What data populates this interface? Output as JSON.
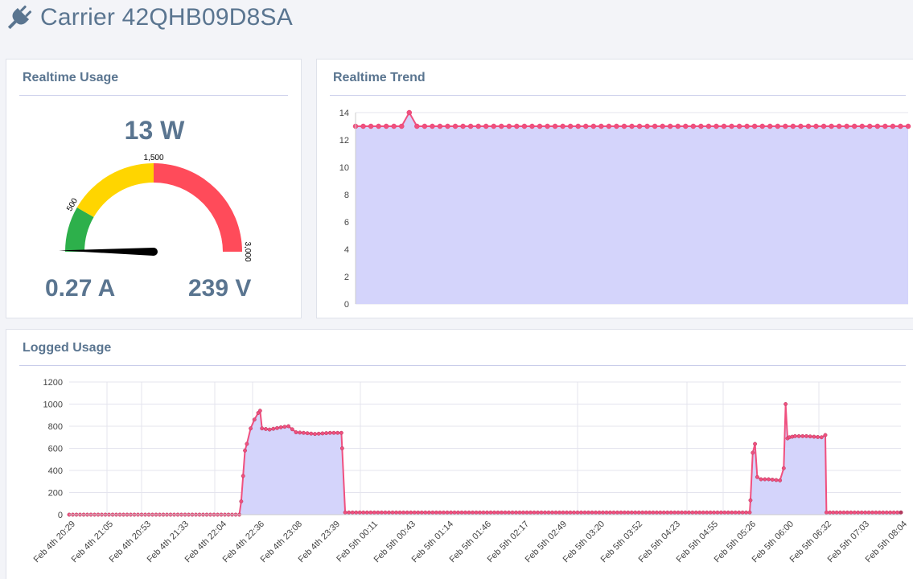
{
  "header": {
    "title": "Carrier 42QHB09D8SA",
    "icon": "plug-icon"
  },
  "realtime_usage": {
    "title": "Realtime Usage",
    "watts": "13 W",
    "amps": "0.27 A",
    "volts": "239 V",
    "gauge": {
      "min": 0,
      "max": 3000,
      "value": 13,
      "labels": [
        "500",
        "1,500",
        "3,000"
      ],
      "bands": [
        {
          "from": 0,
          "to": 500,
          "color": "#2db04b"
        },
        {
          "from": 500,
          "to": 1500,
          "color": "#ffd500"
        },
        {
          "from": 1500,
          "to": 3000,
          "color": "#ff4b5a"
        }
      ]
    }
  },
  "realtime_trend": {
    "title": "Realtime Trend"
  },
  "logged_usage": {
    "title": "Logged Usage"
  },
  "colors": {
    "line": "#f0507f",
    "fill": "#d4d4fb",
    "text": "#5a7590"
  },
  "chart_data": [
    {
      "type": "area",
      "title": "Realtime Trend",
      "ylim": [
        0,
        14
      ],
      "yticks": [
        0,
        2,
        4,
        6,
        8,
        10,
        12,
        14
      ],
      "grid": true,
      "series": [
        {
          "values": [
            13,
            13,
            13,
            13,
            13,
            13,
            13,
            14,
            13,
            13,
            13,
            13,
            13,
            13,
            13,
            13,
            13,
            13,
            13,
            13,
            13,
            13,
            13,
            13,
            13,
            13,
            13,
            13,
            13,
            13,
            13,
            13,
            13,
            13,
            13,
            13,
            13,
            13,
            13,
            13,
            13,
            13,
            13,
            13,
            13,
            13,
            13,
            13,
            13,
            13,
            13,
            13,
            13,
            13,
            13,
            13,
            13,
            13,
            13,
            13,
            13,
            13,
            13,
            13,
            13,
            13,
            13,
            13,
            13,
            13,
            13,
            13,
            13
          ]
        }
      ]
    },
    {
      "type": "area",
      "title": "Logged Usage",
      "ylim": [
        0,
        1200
      ],
      "yticks": [
        0,
        200,
        400,
        600,
        800,
        1000,
        1200
      ],
      "grid": true,
      "categories": [
        "Feb 4th 20:29",
        "Feb 4th 21:05",
        "Feb 4th 20:53",
        "Feb 4th 21:33",
        "Feb 4th 22:04",
        "Feb 4th 22:36",
        "Feb 4th 23:08",
        "Feb 4th 23:39",
        "Feb 5th 00:11",
        "Feb 5th 00:43",
        "Feb 5th 01:14",
        "Feb 5th 01:46",
        "Feb 5th 02:17",
        "Feb 5th 02:49",
        "Feb 5th 03:20",
        "Feb 5th 03:52",
        "Feb 5th 04:23",
        "Feb 5th 04:55",
        "Feb 5th 05:26",
        "Feb 5th 06:00",
        "Feb 5th 06:32",
        "Feb 5th 07:03",
        "Feb 5th 08:04"
      ],
      "series": [
        {
          "x": [
            0,
            4.5,
            4.55,
            4.6,
            4.65,
            4.7,
            4.8,
            4.9,
            5.0,
            5.05,
            5.1,
            5.3,
            5.6,
            5.8,
            6.0,
            6.2,
            6.5,
            6.9,
            7.2,
            7.22,
            7.3,
            10.0,
            14.5,
            18.0,
            18.02,
            18.08,
            18.14,
            18.2,
            18.3,
            18.5,
            18.8,
            18.9,
            18.95,
            19.0,
            19.05,
            19.2,
            19.5,
            19.9,
            20.0,
            20.03,
            20.3,
            22.0
          ],
          "values": [
            0,
            0,
            120,
            350,
            580,
            640,
            780,
            860,
            920,
            940,
            780,
            770,
            790,
            800,
            745,
            740,
            730,
            740,
            740,
            600,
            20,
            20,
            20,
            20,
            130,
            560,
            640,
            340,
            320,
            320,
            310,
            420,
            1000,
            690,
            700,
            710,
            710,
            700,
            720,
            20,
            20,
            20
          ]
        }
      ]
    }
  ]
}
